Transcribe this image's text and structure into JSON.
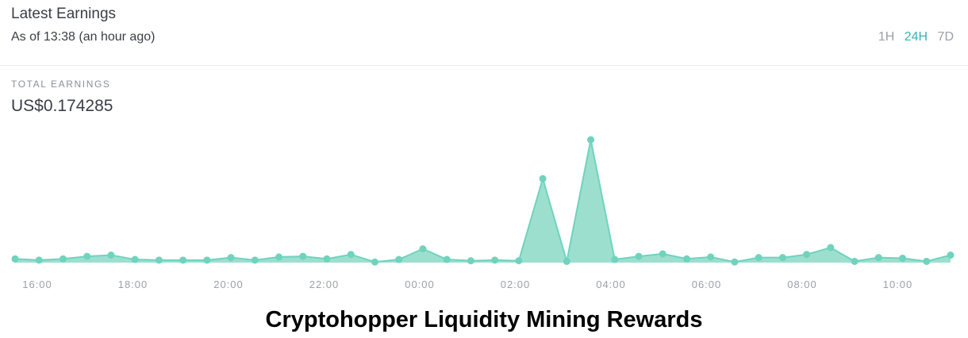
{
  "header": {
    "title": "Latest Earnings",
    "subtitle": "As of 13:38 (an hour ago)",
    "ranges": [
      "1H",
      "24H",
      "7D"
    ],
    "active_range": "24H"
  },
  "summary": {
    "label": "TOTAL EARNINGS",
    "value": "US$0.174285"
  },
  "caption": "Cryptohopper Liquidity Mining Rewards",
  "colors": {
    "accent": "#39b3b1",
    "line": "#6fd3bd",
    "fill": "#9ddfcf"
  },
  "chart_data": {
    "type": "area",
    "x_ticks": [
      "16:00",
      "18:00",
      "20:00",
      "22:00",
      "00:00",
      "02:00",
      "04:00",
      "06:00",
      "08:00",
      "10:00"
    ],
    "ylim": [
      0,
      1
    ],
    "grid": false,
    "values": [
      0.03,
      0.02,
      0.03,
      0.05,
      0.06,
      0.025,
      0.02,
      0.02,
      0.02,
      0.04,
      0.02,
      0.045,
      0.05,
      0.03,
      0.065,
      0.005,
      0.025,
      0.11,
      0.025,
      0.015,
      0.02,
      0.015,
      0.67,
      0.01,
      0.98,
      0.025,
      0.05,
      0.07,
      0.03,
      0.045,
      0.005,
      0.04,
      0.04,
      0.065,
      0.12,
      0.01,
      0.04,
      0.035,
      0.01,
      0.06
    ]
  }
}
